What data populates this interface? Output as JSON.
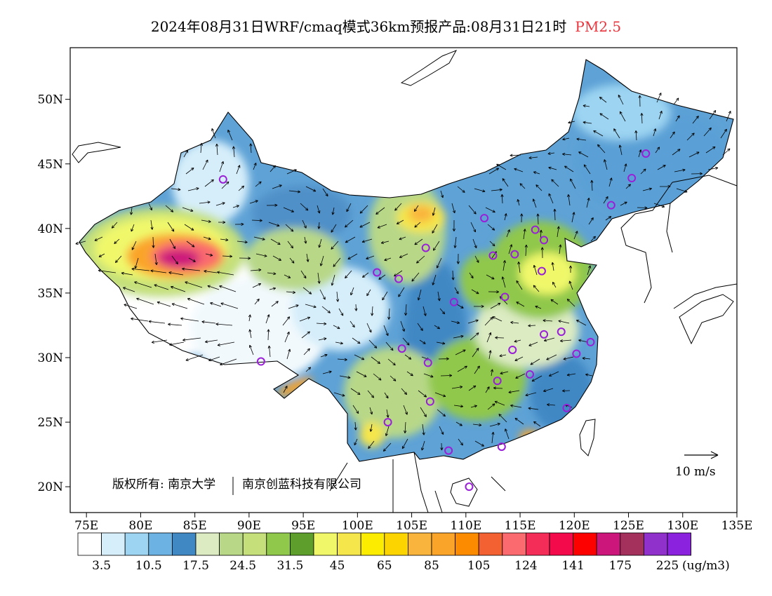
{
  "title": {
    "text": "2024年08月31日WRF/cmaq模式36km预报产品:08月31日21时",
    "pollutant": "PM2.5",
    "pollutant_color": "#e8343c"
  },
  "map": {
    "lon_range": [
      73.5,
      135
    ],
    "lat_range": [
      18,
      54
    ],
    "lon_ticks": [
      "75E",
      "80E",
      "85E",
      "90E",
      "95E",
      "100E",
      "105E",
      "110E",
      "115E",
      "120E",
      "125E",
      "130E",
      "135E"
    ],
    "lat_ticks": [
      "20N",
      "25N",
      "30N",
      "35N",
      "40N",
      "45N",
      "50N"
    ],
    "copyright_prefix": "版权所有: 南京大学",
    "copyright_suffix": "南京创蓝科技有限公司",
    "wind_scale_label": "10 m/s",
    "site_marker_color": "#9a1fd8",
    "sites": [
      [
        87.6,
        43.8
      ],
      [
        91.1,
        29.7
      ],
      [
        101.8,
        36.6
      ],
      [
        103.8,
        36.1
      ],
      [
        106.3,
        38.5
      ],
      [
        104.1,
        30.7
      ],
      [
        106.5,
        29.6
      ],
      [
        106.7,
        26.6
      ],
      [
        102.8,
        25.0
      ],
      [
        108.4,
        22.8
      ],
      [
        110.3,
        20.0
      ],
      [
        113.3,
        23.1
      ],
      [
        112.9,
        28.2
      ],
      [
        114.3,
        30.6
      ],
      [
        115.9,
        28.7
      ],
      [
        117.2,
        31.8
      ],
      [
        118.8,
        32.0
      ],
      [
        120.2,
        30.3
      ],
      [
        121.5,
        31.2
      ],
      [
        119.3,
        26.1
      ],
      [
        113.6,
        34.7
      ],
      [
        117.0,
        36.7
      ],
      [
        114.5,
        38.0
      ],
      [
        112.5,
        37.9
      ],
      [
        111.7,
        40.8
      ],
      [
        116.4,
        39.9
      ],
      [
        117.2,
        39.1
      ],
      [
        123.4,
        41.8
      ],
      [
        125.3,
        43.9
      ],
      [
        126.6,
        45.8
      ],
      [
        108.9,
        34.3
      ]
    ]
  },
  "legend": {
    "unit": "(ug/m3)",
    "colors": [
      "#ffffff",
      "#d6eefa",
      "#9cd4f2",
      "#6cb2e2",
      "#3f88c4",
      "#dcebc2",
      "#b8d888",
      "#c5e07a",
      "#90c84c",
      "#5e9e2c",
      "#f0f86a",
      "#f5e64c",
      "#fbec00",
      "#fcd500",
      "#f9b43e",
      "#faa42a",
      "#fc8b00",
      "#f36032",
      "#fa6a6e",
      "#f32c58",
      "#f20a4a",
      "#fd0000",
      "#cc167c",
      "#a4305c",
      "#9031cc",
      "#8a22de"
    ],
    "labels": [
      "3.5",
      "10.5",
      "17.5",
      "24.5",
      "31.5",
      "45",
      "65",
      "85",
      "105",
      "124",
      "141",
      "175",
      "225"
    ]
  }
}
